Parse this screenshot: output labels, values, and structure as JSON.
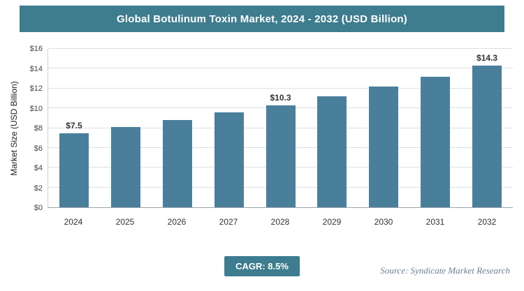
{
  "header": {
    "title": "Global Botulinum Toxin Market, 2024 - 2032 (USD Billion)"
  },
  "footer": {
    "cagr_label": "CAGR: 8.5%",
    "source": "Source: Syndicate Market Research"
  },
  "colors": {
    "header_bg": "#3e7c8f",
    "badge_bg": "#3e7c8f",
    "bar": "#4a7f9c",
    "source_text": "#6d8294"
  },
  "chart_data": {
    "type": "bar",
    "title": "Global Botulinum Toxin Market, 2024 - 2032 (USD Billion)",
    "xlabel": "",
    "ylabel": "Market Size (USD Billion)",
    "categories": [
      "2024",
      "2025",
      "2026",
      "2027",
      "2028",
      "2029",
      "2030",
      "2031",
      "2032"
    ],
    "values": [
      7.5,
      8.1,
      8.8,
      9.6,
      10.3,
      11.2,
      12.2,
      13.2,
      14.3
    ],
    "bar_labels": [
      "$7.5",
      "",
      "",
      "",
      "$10.3",
      "",
      "",
      "",
      "$14.3"
    ],
    "ylim": [
      0,
      16
    ],
    "ytick_step": 2,
    "ytick_labels": [
      "$0",
      "$2",
      "$4",
      "$6",
      "$8",
      "$10",
      "$12",
      "$14",
      "$16"
    ],
    "grid": true,
    "legend": "none",
    "bar_color": "#4a7f9c",
    "cagr": "8.5%"
  }
}
